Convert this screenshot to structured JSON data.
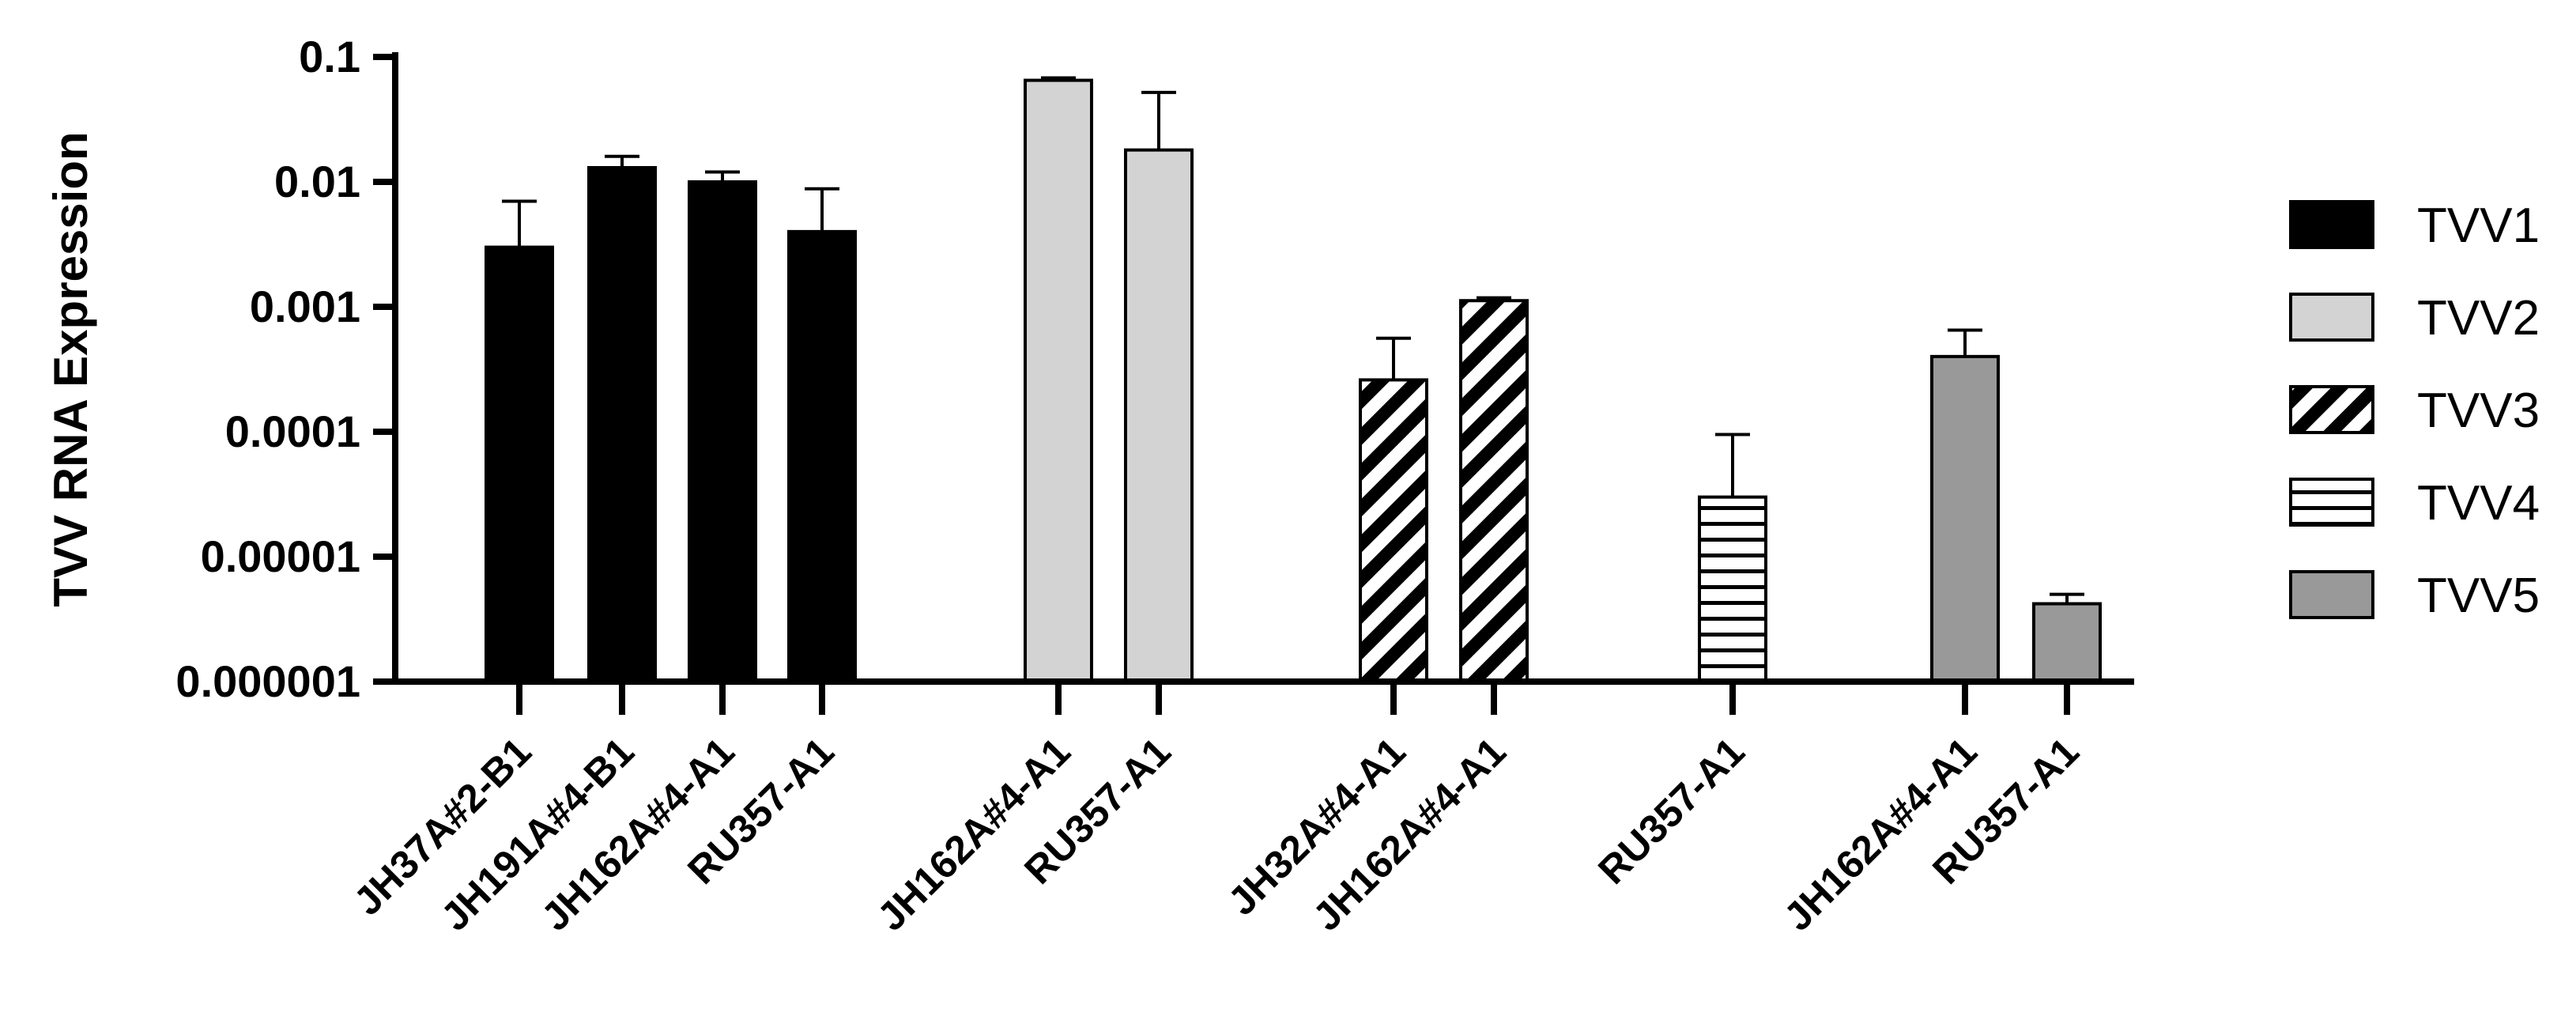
{
  "chart_data": {
    "type": "bar",
    "title": "",
    "xlabel": "",
    "ylabel": "TVV RNA Expression",
    "yscale": "log",
    "ylim": [
      1e-06,
      0.1
    ],
    "yticks": [
      0.1,
      0.01,
      0.001,
      0.0001,
      1e-05,
      1e-06
    ],
    "ytick_labels": [
      "0.1",
      "0.01",
      "0.001",
      "0.0001",
      "0.00001",
      "0.000001"
    ],
    "legend_position": "right",
    "series": [
      {
        "name": "TVV1",
        "color": "#000000",
        "pattern": "solid",
        "categories": [
          "JH37A#2-B1",
          "JH191A#4-B1",
          "JH162A#4-A1",
          "RU357-A1"
        ],
        "values": [
          0.003,
          0.013,
          0.01,
          0.004
        ],
        "error_upper": [
          0.007,
          0.016,
          0.012,
          0.0088
        ]
      },
      {
        "name": "TVV2",
        "color": "#d3d3d3",
        "pattern": "solid",
        "categories": [
          "JH162A#4-A1",
          "RU357-A1"
        ],
        "values": [
          0.065,
          0.018
        ],
        "error_upper": [
          0.068,
          0.052
        ]
      },
      {
        "name": "TVV3",
        "color": "#ffffff",
        "pattern": "diagonal",
        "categories": [
          "JH32A#4-A1",
          "JH162A#4-A1"
        ],
        "values": [
          0.00026,
          0.00112
        ],
        "error_upper": [
          0.00056,
          0.00118
        ]
      },
      {
        "name": "TVV4",
        "color": "#ffffff",
        "pattern": "horizontal",
        "categories": [
          "RU357-A1"
        ],
        "values": [
          3e-05
        ],
        "error_upper": [
          9.5e-05
        ]
      },
      {
        "name": "TVV5",
        "color": "#999999",
        "pattern": "solid",
        "categories": [
          "JH162A#4-A1",
          "RU357-A1"
        ],
        "values": [
          0.0004,
          4.2e-06
        ],
        "error_upper": [
          0.00065,
          5e-06
        ]
      }
    ]
  }
}
